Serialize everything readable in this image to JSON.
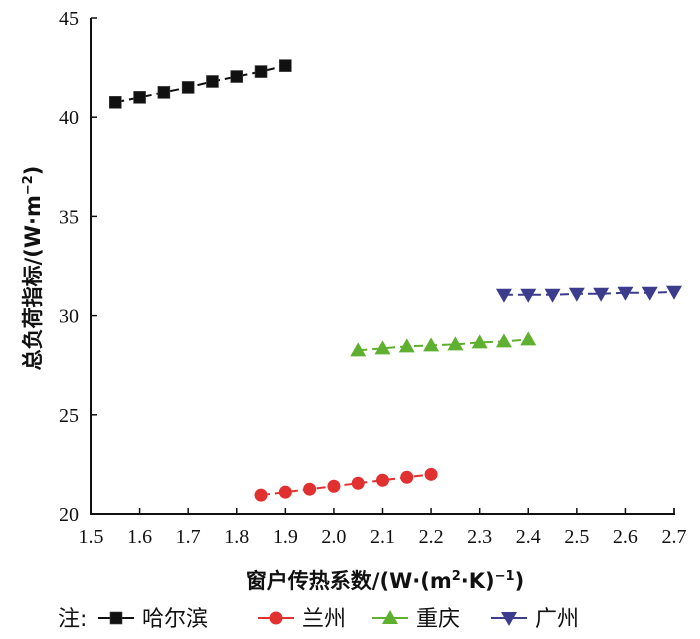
{
  "chart_data": {
    "type": "line",
    "title": "",
    "xlabel": "窗户传热系数/(W·(m²·K)⁻¹)",
    "xlabel_parts": {
      "main": "窗户传热系数/(W·(m",
      "sup1": "2",
      "mid": "·K)",
      "sup2": "−1",
      "end": ")"
    },
    "ylabel": "总负荷指标/(W·m⁻²)",
    "ylabel_parts": {
      "main": "总负荷指标/(W·m",
      "sup": "−2",
      "end": ")"
    },
    "xlim": [
      1.5,
      2.7
    ],
    "ylim": [
      20,
      45
    ],
    "x_ticks": [
      "1.5",
      "1.6",
      "1.7",
      "1.8",
      "1.9",
      "2.0",
      "2.1",
      "2.2",
      "2.3",
      "2.4",
      "2.5",
      "2.6",
      "2.7"
    ],
    "y_ticks": [
      "20",
      "25",
      "30",
      "35",
      "40",
      "45"
    ],
    "grid": false,
    "legend_prefix": "注:",
    "legend_position": "bottom",
    "series": [
      {
        "name": "哈尔滨",
        "color": "#111111",
        "marker": "square",
        "x": [
          1.55,
          1.6,
          1.65,
          1.7,
          1.75,
          1.8,
          1.85,
          1.9
        ],
        "y": [
          40.75,
          41.0,
          41.25,
          41.5,
          41.8,
          42.05,
          42.3,
          42.6
        ]
      },
      {
        "name": "兰州",
        "color": "#e03030",
        "marker": "circle",
        "x": [
          1.85,
          1.9,
          1.95,
          2.0,
          2.05,
          2.1,
          2.15,
          2.2
        ],
        "y": [
          20.95,
          21.1,
          21.25,
          21.4,
          21.55,
          21.7,
          21.85,
          22.0
        ]
      },
      {
        "name": "重庆",
        "color": "#5fb030",
        "marker": "triangle-up",
        "x": [
          2.05,
          2.1,
          2.15,
          2.2,
          2.25,
          2.3,
          2.35,
          2.4
        ],
        "y": [
          28.25,
          28.35,
          28.45,
          28.5,
          28.55,
          28.65,
          28.7,
          28.8
        ]
      },
      {
        "name": "广州",
        "color": "#3c3c8c",
        "marker": "triangle-down",
        "x": [
          2.35,
          2.4,
          2.45,
          2.5,
          2.55,
          2.6,
          2.65,
          2.7
        ],
        "y": [
          31.05,
          31.05,
          31.05,
          31.1,
          31.1,
          31.15,
          31.15,
          31.2
        ]
      }
    ]
  }
}
